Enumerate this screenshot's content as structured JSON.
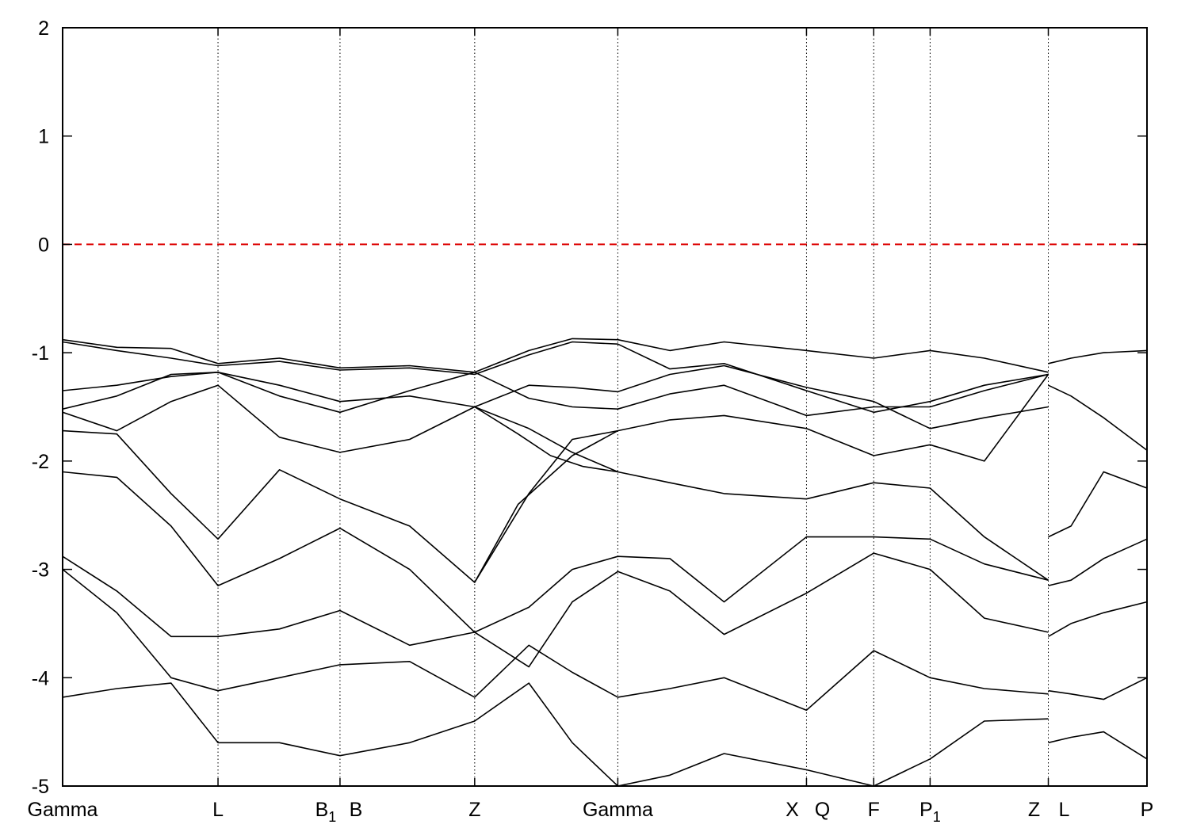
{
  "chart_data": {
    "type": "line",
    "title": "",
    "xlabel": "",
    "ylabel": "",
    "ylim": [
      -5,
      2
    ],
    "y_ticks": [
      "2",
      "1",
      "0",
      "-1",
      "-2",
      "-3",
      "-4",
      "-5"
    ],
    "y_tick_values": [
      2,
      1,
      0,
      -1,
      -2,
      -3,
      -4,
      -5
    ],
    "x_range": [
      0,
      10
    ],
    "kpoints": [
      {
        "label": "Gamma",
        "sub": "",
        "x": 0
      },
      {
        "label": "L",
        "sub": "",
        "x": 1.433
      },
      {
        "label": "B",
        "sub": "1",
        "x": 2.558
      },
      {
        "label": "B",
        "sub": "",
        "x": 2.558
      },
      {
        "label": "Z",
        "sub": "",
        "x": 3.8
      },
      {
        "label": "Gamma",
        "sub": "",
        "x": 5.12
      },
      {
        "label": "X",
        "sub": "",
        "x": 6.86
      },
      {
        "label": "Q",
        "sub": "",
        "x": 6.86
      },
      {
        "label": "F",
        "sub": "",
        "x": 7.48
      },
      {
        "label": "P",
        "sub": "1",
        "x": 8.0
      },
      {
        "label": "Z",
        "sub": "",
        "x": 9.09
      },
      {
        "label": "L",
        "sub": "",
        "x": 9.09
      },
      {
        "label": "P",
        "sub": "",
        "x": 10
      }
    ],
    "kpoint_lines": [
      1.433,
      2.558,
      3.8,
      5.12,
      6.86,
      7.48,
      8.0,
      9.09
    ],
    "fermi_level": 0,
    "colors": {
      "bands": "#000000",
      "fermi": "#dd0000",
      "grid": "#000000"
    },
    "series": [
      {
        "x": [
          0,
          0.5,
          1.0,
          1.433,
          2.0,
          2.558,
          3.2,
          3.8,
          4.3,
          4.7,
          5.12,
          5.6,
          6.1,
          6.86,
          7.48,
          8.0,
          8.5,
          9.09
        ],
        "y": [
          -0.88,
          -0.95,
          -0.96,
          -1.1,
          -1.05,
          -1.14,
          -1.12,
          -1.18,
          -0.98,
          -0.87,
          -0.88,
          -0.98,
          -0.9,
          -0.98,
          -1.05,
          -0.98,
          -1.05,
          -1.18
        ]
      },
      {
        "x": [
          0,
          0.5,
          1.0,
          1.433,
          2.0,
          2.558,
          3.2,
          3.8,
          4.3,
          4.7,
          5.12,
          5.6,
          6.1,
          6.86,
          7.48,
          8.0,
          8.5,
          9.09
        ],
        "y": [
          -0.9,
          -0.98,
          -1.05,
          -1.12,
          -1.08,
          -1.16,
          -1.14,
          -1.2,
          -1.02,
          -0.9,
          -0.92,
          -1.15,
          -1.1,
          -1.35,
          -1.55,
          -1.45,
          -1.3,
          -1.2
        ]
      },
      {
        "x": [
          0,
          0.5,
          1.0,
          1.433,
          2.0,
          2.558,
          3.2,
          3.8,
          4.3,
          4.7,
          5.12,
          5.6,
          6.1,
          6.86,
          7.48,
          8.0,
          8.5,
          9.09
        ],
        "y": [
          -1.35,
          -1.3,
          -1.22,
          -1.18,
          -1.4,
          -1.55,
          -1.35,
          -1.18,
          -1.42,
          -1.5,
          -1.52,
          -1.38,
          -1.3,
          -1.58,
          -1.5,
          -1.5,
          -1.35,
          -1.2
        ]
      },
      {
        "x": [
          0,
          0.5,
          1.0,
          1.433,
          2.0,
          2.558,
          3.2,
          3.8,
          4.3,
          4.7,
          5.12,
          5.6,
          6.1,
          6.86,
          7.48,
          8.0,
          8.5,
          9.09
        ],
        "y": [
          -1.52,
          -1.4,
          -1.2,
          -1.18,
          -1.3,
          -1.45,
          -1.4,
          -1.5,
          -1.3,
          -1.32,
          -1.36,
          -1.2,
          -1.12,
          -1.32,
          -1.45,
          -1.7,
          -1.6,
          -1.5
        ]
      },
      {
        "x": [
          0,
          0.5,
          1.0,
          1.433,
          2.0,
          2.558,
          3.2,
          3.8,
          4.3,
          4.7,
          5.12,
          5.6,
          6.1,
          6.86,
          7.48,
          8.0,
          8.5,
          9.09
        ],
        "y": [
          -1.55,
          -1.72,
          -1.45,
          -1.3,
          -1.78,
          -1.92,
          -1.8,
          -1.5,
          -1.7,
          -1.92,
          -2.1,
          -2.2,
          -2.3,
          -2.35,
          -2.2,
          -2.25,
          -2.7,
          -3.1
        ]
      },
      {
        "x": [
          0,
          0.5,
          1.0,
          1.433,
          2.0,
          2.558,
          3.2,
          3.8,
          4.3,
          4.7,
          5.12,
          5.6,
          6.1,
          6.86,
          7.48,
          8.0,
          8.5,
          9.09
        ],
        "y": [
          -1.72,
          -1.75,
          -2.3,
          -2.72,
          -2.08,
          -2.35,
          -2.6,
          -3.12,
          -2.3,
          -1.8,
          -1.72,
          -1.62,
          -1.58,
          -1.7,
          -1.95,
          -1.85,
          -2.0,
          -1.2
        ]
      },
      {
        "x": [
          0,
          0.5,
          1.0,
          1.433,
          2.0,
          2.558,
          3.2,
          3.8,
          4.3,
          4.7,
          5.12,
          5.6,
          6.1,
          6.86,
          7.48,
          8.0,
          8.5,
          9.09
        ],
        "y": [
          -2.1,
          -2.15,
          -2.6,
          -3.15,
          -2.9,
          -2.62,
          -3.0,
          -3.58,
          -3.35,
          -3.0,
          -2.88,
          -2.9,
          -3.3,
          -2.7,
          -2.7,
          -2.72,
          -2.95,
          -3.1
        ]
      },
      {
        "x": [
          0,
          0.5,
          1.0,
          1.433,
          2.0,
          2.558,
          3.2,
          3.8,
          4.3,
          4.7,
          5.12,
          5.6,
          6.1,
          6.86,
          7.48,
          8.0,
          8.5,
          9.09
        ],
        "y": [
          -2.88,
          -3.2,
          -3.62,
          -3.62,
          -3.55,
          -3.38,
          -3.7,
          -3.58,
          -3.9,
          -3.3,
          -3.02,
          -3.2,
          -3.6,
          -3.22,
          -2.85,
          -3.0,
          -3.45,
          -3.58
        ]
      },
      {
        "x": [
          0,
          0.5,
          1.0,
          1.433,
          2.0,
          2.558,
          3.2,
          3.8,
          4.3,
          4.7,
          5.12,
          5.6,
          6.1,
          6.86,
          7.48,
          8.0,
          8.5,
          9.09
        ],
        "y": [
          -3.0,
          -3.4,
          -4.0,
          -4.12,
          -4.0,
          -3.88,
          -3.85,
          -4.18,
          -3.7,
          -3.95,
          -4.18,
          -4.1,
          -4.0,
          -4.3,
          -3.75,
          -4.0,
          -4.1,
          -4.15
        ]
      },
      {
        "x": [
          0,
          0.5,
          1.0,
          1.433,
          2.0,
          2.558,
          3.2,
          3.8,
          4.3,
          4.7,
          5.12,
          5.6,
          6.1,
          6.86,
          7.48,
          8.0,
          8.5,
          9.09
        ],
        "y": [
          -4.18,
          -4.1,
          -4.05,
          -4.6,
          -4.6,
          -4.72,
          -4.6,
          -4.4,
          -4.05,
          -4.6,
          -5.0,
          -4.9,
          -4.7,
          -4.85,
          -5.0,
          -4.75,
          -4.4,
          -4.38
        ]
      },
      {
        "x": [
          3.8,
          4.2,
          4.7,
          5.12
        ],
        "y": [
          -3.12,
          -2.4,
          -1.95,
          -1.72
        ]
      },
      {
        "x": [
          3.8,
          4.2,
          4.5,
          4.8,
          5.12
        ],
        "y": [
          -1.5,
          -1.75,
          -1.95,
          -2.05,
          -2.1
        ]
      },
      {
        "x": [
          9.09,
          9.3,
          9.6,
          10
        ],
        "y": [
          -1.1,
          -1.05,
          -1.0,
          -0.98
        ]
      },
      {
        "x": [
          9.09,
          9.3,
          9.6,
          10
        ],
        "y": [
          -1.3,
          -1.4,
          -1.6,
          -1.9
        ]
      },
      {
        "x": [
          9.09,
          9.3,
          9.6,
          10
        ],
        "y": [
          -2.7,
          -2.6,
          -2.1,
          -2.25
        ]
      },
      {
        "x": [
          9.09,
          9.3,
          9.6,
          10
        ],
        "y": [
          -3.15,
          -3.1,
          -2.9,
          -2.72
        ]
      },
      {
        "x": [
          9.09,
          9.3,
          9.6,
          10
        ],
        "y": [
          -3.62,
          -3.5,
          -3.4,
          -3.3
        ]
      },
      {
        "x": [
          9.09,
          9.3,
          9.6,
          10
        ],
        "y": [
          -4.12,
          -4.15,
          -4.2,
          -4.0
        ]
      },
      {
        "x": [
          9.09,
          9.3,
          9.6,
          10
        ],
        "y": [
          -4.6,
          -4.55,
          -4.5,
          -4.75
        ]
      }
    ]
  }
}
